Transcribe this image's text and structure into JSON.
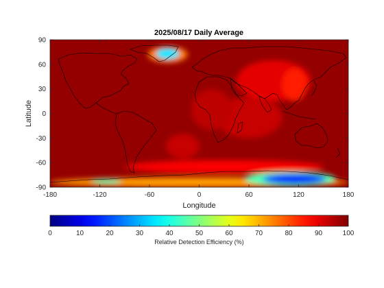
{
  "chart_data": {
    "type": "heatmap",
    "title": "2025/08/17 Daily Average",
    "xlabel": "Longitude",
    "ylabel": "Latitude",
    "xlim": [
      -180,
      180
    ],
    "ylim": [
      -90,
      90
    ],
    "x_ticks": [
      -180,
      -120,
      -60,
      0,
      60,
      120,
      180
    ],
    "y_ticks": [
      90,
      60,
      30,
      0,
      -30,
      -60,
      -90
    ],
    "background_value": 98,
    "colorscale": "jet",
    "features": [
      {
        "name": "greenland-low",
        "lon": -38,
        "lat": 73,
        "rx_deg": 14,
        "ry_deg": 7,
        "value": 35
      },
      {
        "name": "greenland-ring",
        "lon": -38,
        "lat": 72,
        "rx_deg": 24,
        "ry_deg": 10,
        "value": 75
      },
      {
        "name": "east-antarctica-low",
        "lon": 115,
        "lat": -80,
        "rx_deg": 38,
        "ry_deg": 6,
        "value": 15
      },
      {
        "name": "east-antarctica-ring",
        "lon": 110,
        "lat": -80,
        "rx_deg": 55,
        "ry_deg": 9,
        "value": 45
      },
      {
        "name": "west-antarctica-low",
        "lon": -112,
        "lat": -83,
        "rx_deg": 18,
        "ry_deg": 3,
        "value": 45
      },
      {
        "name": "antarctica-band",
        "lon": 0,
        "lat": -84,
        "rx_deg": 180,
        "ry_deg": 6,
        "value": 72
      },
      {
        "name": "asia-high",
        "lon": 90,
        "lat": 40,
        "rx_deg": 45,
        "ry_deg": 25,
        "value": 90
      },
      {
        "name": "china-high",
        "lon": 115,
        "lat": 35,
        "rx_deg": 15,
        "ry_deg": 20,
        "value": 85
      },
      {
        "name": "indian-ocean-high",
        "lon": 60,
        "lat": -5,
        "rx_deg": 40,
        "ry_deg": 25,
        "value": 93
      },
      {
        "name": "africa-high",
        "lon": 15,
        "lat": 5,
        "rx_deg": 25,
        "ry_deg": 25,
        "value": 94
      },
      {
        "name": "south-atlantic-high",
        "lon": -20,
        "lat": -40,
        "rx_deg": 20,
        "ry_deg": 15,
        "value": 93
      },
      {
        "name": "southern-ocean-high",
        "lon": 30,
        "lat": -65,
        "rx_deg": 120,
        "ry_deg": 8,
        "value": 88
      }
    ],
    "colorbar": {
      "label": "Relative Detection Efficiency (%)",
      "ticks": [
        0,
        10,
        20,
        30,
        40,
        50,
        60,
        70,
        80,
        90,
        100
      ],
      "range": [
        0,
        100
      ]
    }
  },
  "colors": {
    "axis": "#262626",
    "coastline": "#000000"
  }
}
